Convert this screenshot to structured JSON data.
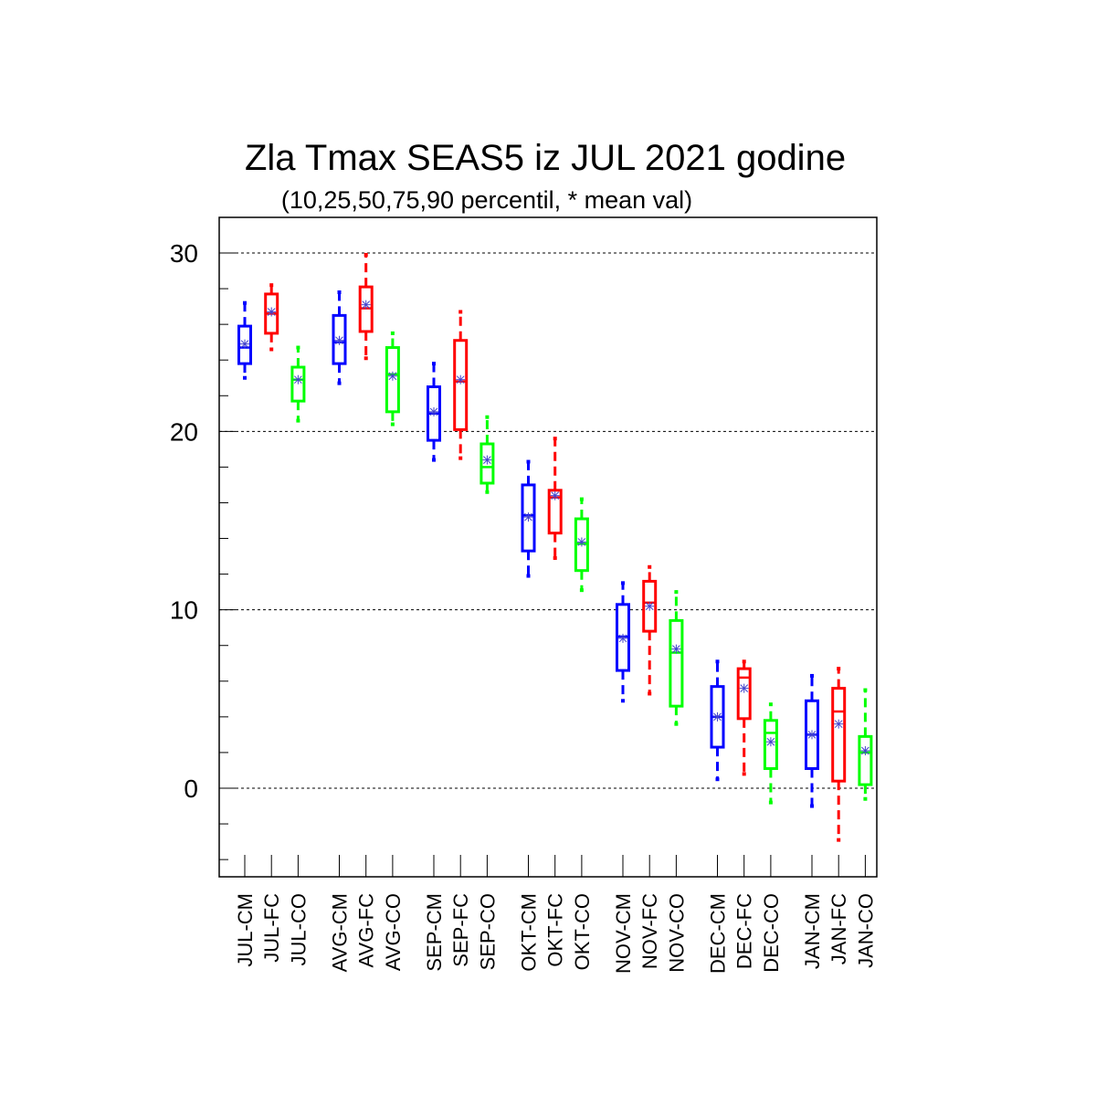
{
  "chart_data": {
    "type": "boxplot",
    "title": "Zla Tmax SEAS5 iz JUL 2021 godine",
    "subtitle": "(10,25,50,75,90 percentil, * mean val)",
    "xlabel": "",
    "ylabel": "",
    "ylim": [
      -5,
      32
    ],
    "yticks": [
      0,
      10,
      20,
      30
    ],
    "grid": "horizontal-dashed",
    "colors": {
      "CM": "#0000ff",
      "FC": "#ff0000",
      "CO": "#00ff00",
      "mean_marker": "#4444cc"
    },
    "categories": [
      "JUL-CM",
      "JUL-FC",
      "JUL-CO",
      "AVG-CM",
      "AVG-FC",
      "AVG-CO",
      "SEP-CM",
      "SEP-FC",
      "SEP-CO",
      "OKT-CM",
      "OKT-FC",
      "OKT-CO",
      "NOV-CM",
      "NOV-FC",
      "NOV-CO",
      "DEC-CM",
      "DEC-FC",
      "DEC-CO",
      "JAN-CM",
      "JAN-FC",
      "JAN-CO"
    ],
    "series_type": [
      "CM",
      "FC",
      "CO",
      "CM",
      "FC",
      "CO",
      "CM",
      "FC",
      "CO",
      "CM",
      "FC",
      "CO",
      "CM",
      "FC",
      "CO",
      "CM",
      "FC",
      "CO",
      "CM",
      "FC",
      "CO"
    ],
    "p10": [
      23.0,
      24.6,
      20.6,
      22.7,
      24.1,
      20.4,
      18.4,
      18.5,
      16.6,
      11.9,
      12.9,
      11.1,
      4.9,
      5.3,
      3.6,
      0.5,
      0.8,
      -0.8,
      -1.0,
      -2.9,
      -0.6
    ],
    "p25": [
      23.8,
      25.5,
      21.7,
      23.8,
      25.6,
      21.1,
      19.5,
      20.1,
      17.1,
      13.3,
      14.3,
      12.2,
      6.6,
      8.8,
      4.6,
      2.3,
      3.9,
      1.1,
      1.1,
      0.4,
      0.2
    ],
    "p50": [
      24.7,
      26.6,
      22.9,
      25.0,
      26.9,
      23.2,
      21.0,
      22.8,
      18.0,
      15.3,
      16.3,
      13.7,
      8.5,
      10.4,
      7.6,
      4.0,
      6.2,
      3.1,
      3.0,
      4.3,
      2.0
    ],
    "p75": [
      25.9,
      27.7,
      23.6,
      26.5,
      28.1,
      24.7,
      22.5,
      25.1,
      19.3,
      17.0,
      16.7,
      15.1,
      10.3,
      11.6,
      9.4,
      5.7,
      6.7,
      3.8,
      4.9,
      5.6,
      2.9
    ],
    "p90": [
      27.2,
      28.2,
      24.7,
      27.8,
      29.9,
      25.5,
      23.8,
      26.7,
      20.8,
      18.3,
      19.6,
      16.2,
      11.5,
      12.4,
      11.0,
      7.1,
      7.1,
      4.7,
      6.3,
      6.7,
      5.5
    ],
    "mean": [
      24.9,
      26.7,
      22.9,
      25.1,
      27.1,
      23.1,
      21.1,
      22.9,
      18.4,
      15.2,
      16.4,
      13.8,
      8.4,
      10.2,
      7.8,
      4.0,
      5.6,
      2.6,
      3.0,
      3.6,
      2.1
    ]
  }
}
